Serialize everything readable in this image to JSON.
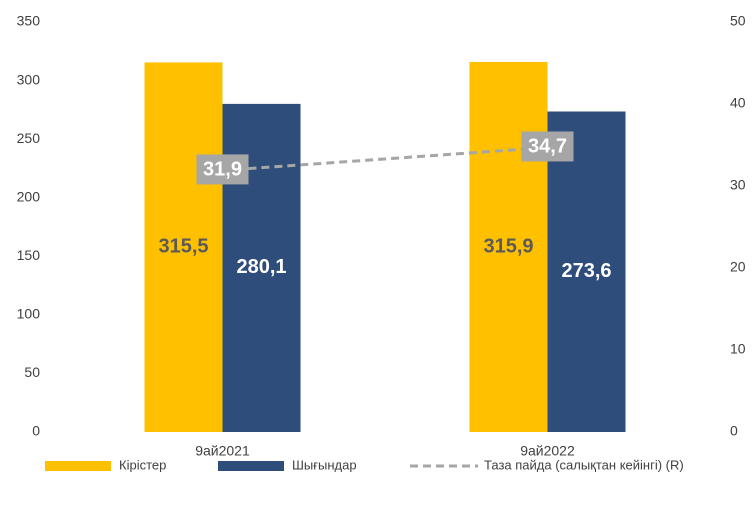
{
  "chart_data": {
    "type": "bar",
    "categories": [
      "9ай2021",
      "9ай2022"
    ],
    "series": [
      {
        "name": "Кірістер",
        "type": "bar",
        "color": "#FFC000",
        "label_color": "#5a5a5a",
        "values": [
          315.5,
          315.9
        ],
        "value_labels": [
          "315,5",
          "315,9"
        ]
      },
      {
        "name": "Шығындар",
        "type": "bar",
        "color": "#2E4D7B",
        "label_color": "#ffffff",
        "values": [
          280.1,
          273.6
        ],
        "value_labels": [
          "280,1",
          "273,6"
        ]
      },
      {
        "name": "Таза пайда (салықтан кейінгі) (R)",
        "type": "line",
        "axis": "y2",
        "color": "#A6A6A6",
        "dashed": true,
        "values": [
          31.9,
          34.7
        ],
        "value_labels": [
          "31,9",
          "34,7"
        ]
      }
    ],
    "ylim": [
      0,
      350
    ],
    "yticks": [
      0,
      50,
      100,
      150,
      200,
      250,
      300,
      350
    ],
    "y2lim": [
      0,
      50
    ],
    "y2ticks": [
      0,
      10,
      20,
      30,
      40,
      50
    ],
    "grid": false,
    "legend": "bottom"
  }
}
